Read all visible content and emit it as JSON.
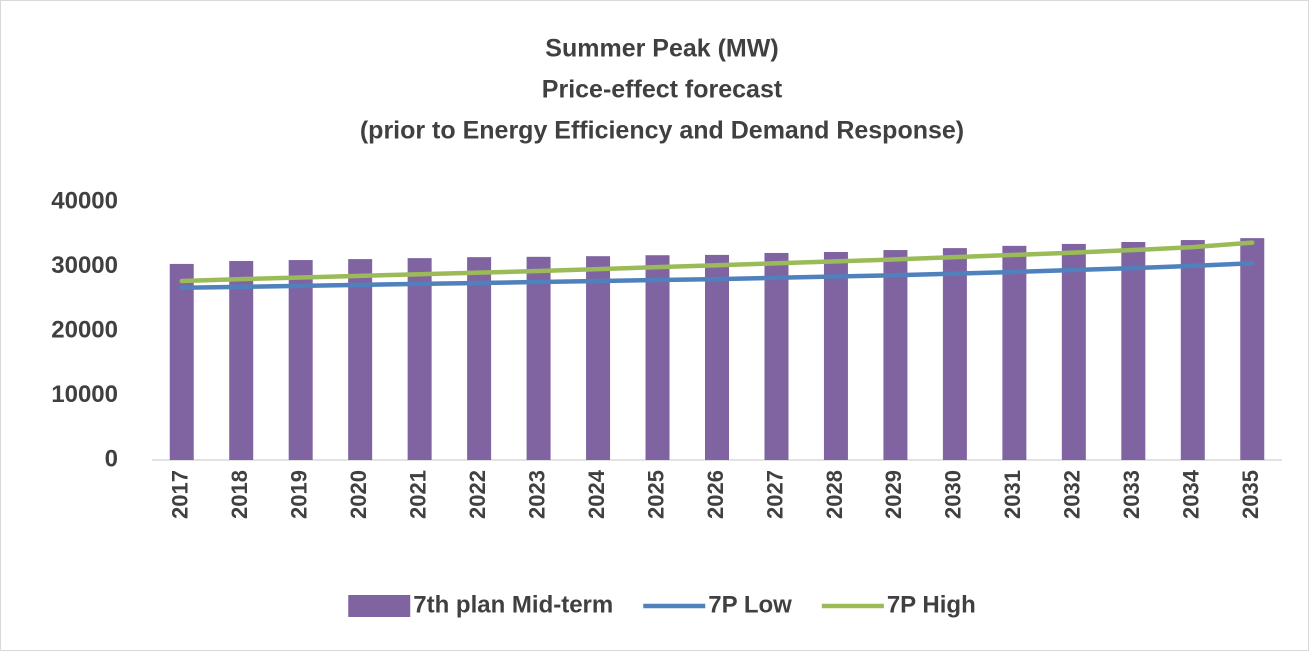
{
  "chart_data": {
    "type": "bar",
    "title": [
      "Summer Peak (MW)",
      "Price-effect forecast",
      "(prior to Energy Efficiency and Demand Response)"
    ],
    "categories": [
      "2017",
      "2018",
      "2019",
      "2020",
      "2021",
      "2022",
      "2023",
      "2024",
      "2025",
      "2026",
      "2027",
      "2028",
      "2029",
      "2030",
      "2031",
      "2032",
      "2033",
      "2034",
      "2035"
    ],
    "series": [
      {
        "name": "7th plan Mid-term",
        "type": "bar",
        "color": "#8064a2",
        "values": [
          30400,
          30850,
          31000,
          31150,
          31300,
          31450,
          31500,
          31600,
          31750,
          31800,
          32100,
          32250,
          32550,
          32850,
          33200,
          33500,
          33800,
          34100,
          34400
        ]
      },
      {
        "name": "7P Low",
        "type": "line",
        "color": "#4f81bd",
        "values": [
          26700,
          26850,
          27000,
          27150,
          27300,
          27450,
          27600,
          27750,
          27900,
          28050,
          28250,
          28450,
          28650,
          28900,
          29150,
          29450,
          29750,
          30100,
          30500
        ]
      },
      {
        "name": "7P High",
        "type": "line",
        "color": "#9bbb59",
        "values": [
          27750,
          28050,
          28300,
          28550,
          28800,
          29050,
          29300,
          29600,
          29900,
          30200,
          30500,
          30800,
          31100,
          31450,
          31800,
          32150,
          32550,
          33000,
          33700
        ]
      }
    ],
    "ylim": [
      0,
      40000
    ],
    "yticks": [
      0,
      10000,
      20000,
      30000,
      40000
    ],
    "grid": false,
    "legend": "bottom"
  }
}
